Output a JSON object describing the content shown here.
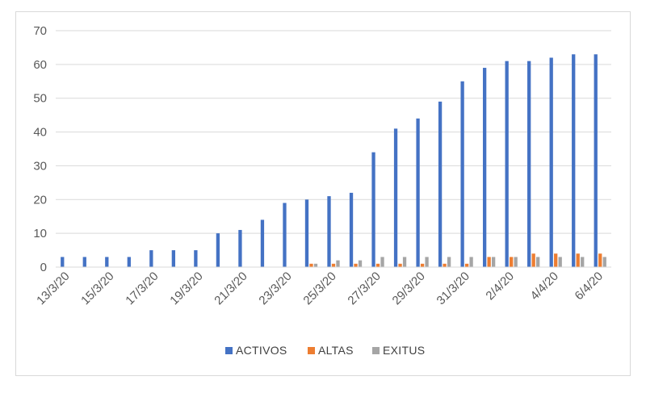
{
  "chart_data": {
    "type": "bar",
    "title": "",
    "xlabel": "",
    "ylabel": "",
    "ylim": [
      0,
      70
    ],
    "yticks": [
      0,
      10,
      20,
      30,
      40,
      50,
      60,
      70
    ],
    "grid": true,
    "legend_position": "bottom",
    "categories": [
      "13/3/20",
      "14/3/20",
      "15/3/20",
      "16/3/20",
      "17/3/20",
      "18/3/20",
      "19/3/20",
      "20/3/20",
      "21/3/20",
      "22/3/20",
      "23/3/20",
      "24/3/20",
      "25/3/20",
      "26/3/20",
      "27/3/20",
      "28/3/20",
      "29/3/20",
      "30/3/20",
      "31/3/20",
      "1/4/20",
      "2/4/20",
      "3/4/20",
      "4/4/20",
      "5/4/20",
      "6/4/20"
    ],
    "tick_labels": [
      "13/3/20",
      "15/3/20",
      "17/3/20",
      "19/3/20",
      "21/3/20",
      "23/3/20",
      "25/3/20",
      "27/3/20",
      "29/3/20",
      "31/3/20",
      "2/4/20",
      "4/4/20",
      "6/4/20"
    ],
    "series": [
      {
        "name": "ACTIVOS",
        "color": "#4472c4",
        "values": [
          3,
          3,
          3,
          3,
          5,
          5,
          5,
          10,
          11,
          14,
          19,
          20,
          21,
          22,
          34,
          41,
          44,
          49,
          55,
          59,
          61,
          61,
          62,
          63,
          63
        ]
      },
      {
        "name": "ALTAS",
        "color": "#ed7d31",
        "values": [
          0,
          0,
          0,
          0,
          0,
          0,
          0,
          0,
          0,
          0,
          0,
          1,
          1,
          1,
          1,
          1,
          1,
          1,
          1,
          3,
          3,
          4,
          4,
          4,
          4
        ]
      },
      {
        "name": "EXITUS",
        "color": "#a5a5a5",
        "values": [
          0,
          0,
          0,
          0,
          0,
          0,
          0,
          0,
          0,
          0,
          0,
          1,
          2,
          2,
          3,
          3,
          3,
          3,
          3,
          3,
          3,
          3,
          3,
          3,
          3
        ]
      }
    ]
  }
}
